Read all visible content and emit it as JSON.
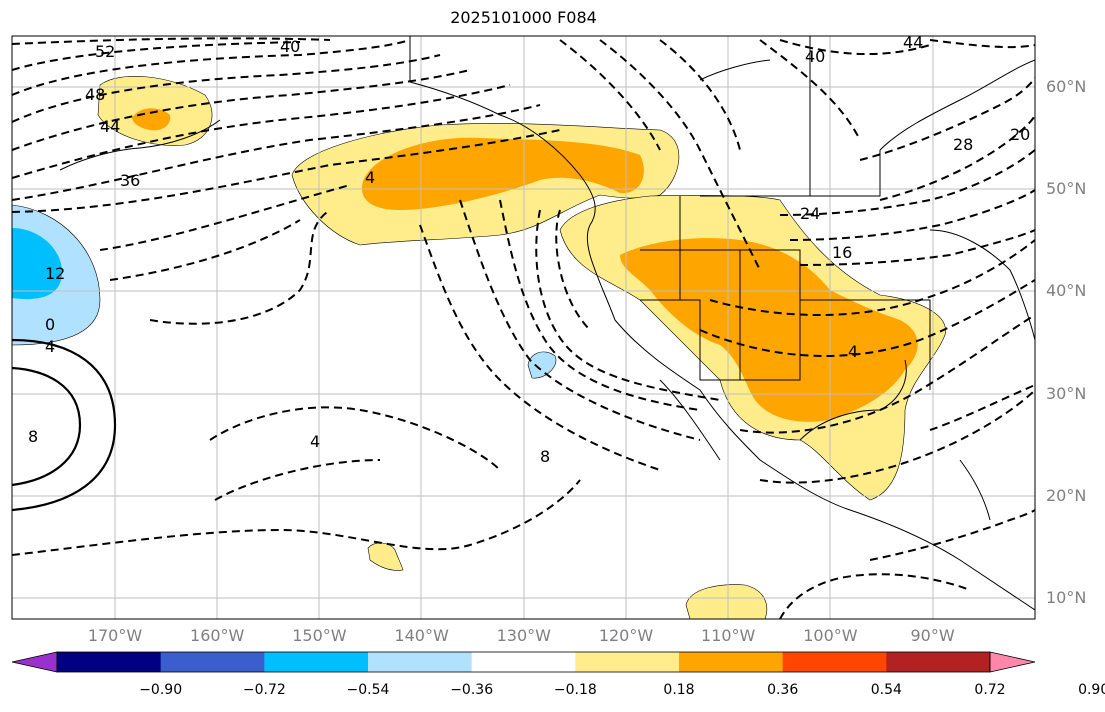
{
  "title": "2025101000 F084",
  "lat_labels": [
    {
      "text": "60°N",
      "value": 60
    },
    {
      "text": "50°N",
      "value": 50
    },
    {
      "text": "40°N",
      "value": 40
    },
    {
      "text": "30°N",
      "value": 30
    },
    {
      "text": "20°N",
      "value": 20
    },
    {
      "text": "10°N",
      "value": 10
    }
  ],
  "lon_labels": [
    {
      "text": "170°W",
      "value": -170
    },
    {
      "text": "160°W",
      "value": -160
    },
    {
      "text": "150°W",
      "value": -150
    },
    {
      "text": "140°W",
      "value": -140
    },
    {
      "text": "130°W",
      "value": -130
    },
    {
      "text": "120°W",
      "value": -120
    },
    {
      "text": "110°W",
      "value": -110
    },
    {
      "text": "100°W",
      "value": -100
    },
    {
      "text": "90°W",
      "value": -90
    }
  ],
  "contour_labels": [
    "52",
    "40",
    "48",
    "44",
    "36",
    "4",
    "40",
    "44",
    "28",
    "20",
    "24",
    "16",
    "12",
    "0",
    "4",
    "8",
    "4",
    "8",
    "4"
  ],
  "colorbar": {
    "colors": [
      "#9932CC",
      "#000080",
      "#3A5FCD",
      "#00BFFF",
      "#B0E2FF",
      "#FFFFFF",
      "#FFEC8B",
      "#FFA500",
      "#FF4500",
      "#B22222",
      "#FF88AA"
    ],
    "ticks": [
      "−0.90",
      "−0.72",
      "−0.54",
      "−0.36",
      "−0.18",
      "0.18",
      "0.36",
      "0.54",
      "0.72",
      "0.90"
    ]
  },
  "fill_colors": {
    "light_yellow": "#FFEC8B",
    "orange": "#FFA500",
    "light_blue": "#B0E2FF",
    "cyan": "#00BFFF"
  }
}
